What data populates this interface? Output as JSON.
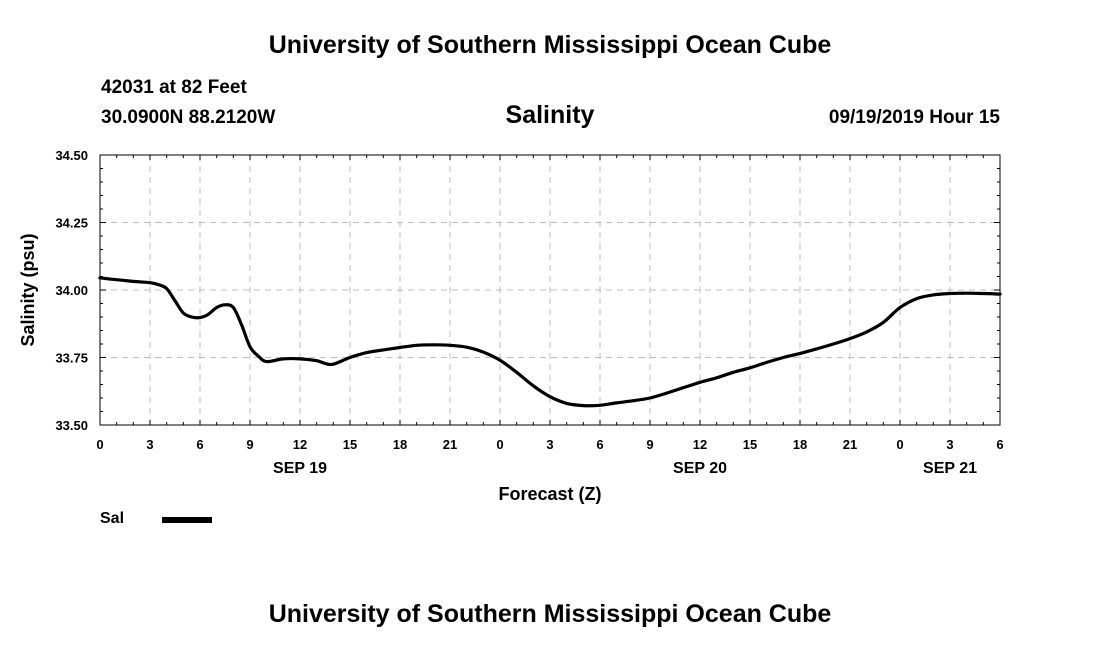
{
  "page": {
    "title_top": "University of Southern Mississippi Ocean Cube",
    "title_bottom": "University of Southern Mississippi Ocean Cube",
    "station": "42031 at 82 Feet",
    "coordinates": "30.0900N 88.2120W",
    "chart_title": "Salinity",
    "datetime": "09/19/2019 Hour 15",
    "legend_label": "Sal"
  },
  "chart_data": {
    "type": "line",
    "title": "Salinity",
    "xlabel": "Forecast (Z)",
    "ylabel": "Salinity (psu)",
    "x_unit": "hours since SEP 19 00Z",
    "xlim": [
      0,
      54
    ],
    "ylim": [
      33.5,
      34.5
    ],
    "y_ticks": [
      33.5,
      33.75,
      34.0,
      34.25,
      34.5
    ],
    "y_tick_labels": [
      "33.50",
      "33.75",
      "34.00",
      "34.25",
      "34.50"
    ],
    "x_ticks": [
      0,
      3,
      6,
      9,
      12,
      15,
      18,
      21,
      24,
      27,
      30,
      33,
      36,
      39,
      42,
      45,
      48,
      51,
      54
    ],
    "x_tick_labels": [
      "0",
      "3",
      "6",
      "9",
      "12",
      "15",
      "18",
      "21",
      "0",
      "3",
      "6",
      "9",
      "12",
      "15",
      "18",
      "21",
      "0",
      "3",
      "6"
    ],
    "date_labels": [
      {
        "x": 12,
        "label": "SEP 19"
      },
      {
        "x": 36,
        "label": "SEP 20"
      },
      {
        "x": 51,
        "label": "SEP 21"
      }
    ],
    "grid": true,
    "legend": "bottom-left",
    "series": [
      {
        "name": "Sal",
        "color": "#000000",
        "x": [
          0,
          1,
          2,
          3,
          3.5,
          4,
          4.5,
          5,
          5.5,
          6,
          6.5,
          7,
          7.5,
          8,
          8.5,
          9,
          9.5,
          10,
          11,
          12,
          13,
          13.5,
          14,
          15,
          16,
          17,
          18,
          19,
          20,
          21,
          22,
          23,
          24,
          25,
          26,
          27,
          28,
          29,
          30,
          31,
          32,
          33,
          34,
          35,
          36,
          37,
          38,
          39,
          40,
          41,
          42,
          43,
          44,
          45,
          46,
          47,
          48,
          49,
          50,
          51,
          52,
          53,
          54
        ],
        "values": [
          34.045,
          34.038,
          34.032,
          34.027,
          34.02,
          34.005,
          33.96,
          33.915,
          33.9,
          33.898,
          33.91,
          33.935,
          33.945,
          33.935,
          33.87,
          33.79,
          33.755,
          33.735,
          33.745,
          33.745,
          33.738,
          33.728,
          33.725,
          33.75,
          33.768,
          33.778,
          33.787,
          33.795,
          33.797,
          33.795,
          33.788,
          33.77,
          33.74,
          33.695,
          33.645,
          33.605,
          33.58,
          33.572,
          33.573,
          33.582,
          33.59,
          33.6,
          33.618,
          33.638,
          33.658,
          33.675,
          33.695,
          33.712,
          33.732,
          33.75,
          33.765,
          33.782,
          33.8,
          33.82,
          33.845,
          33.88,
          33.935,
          33.968,
          33.982,
          33.987,
          33.988,
          33.987,
          33.985
        ]
      }
    ]
  }
}
